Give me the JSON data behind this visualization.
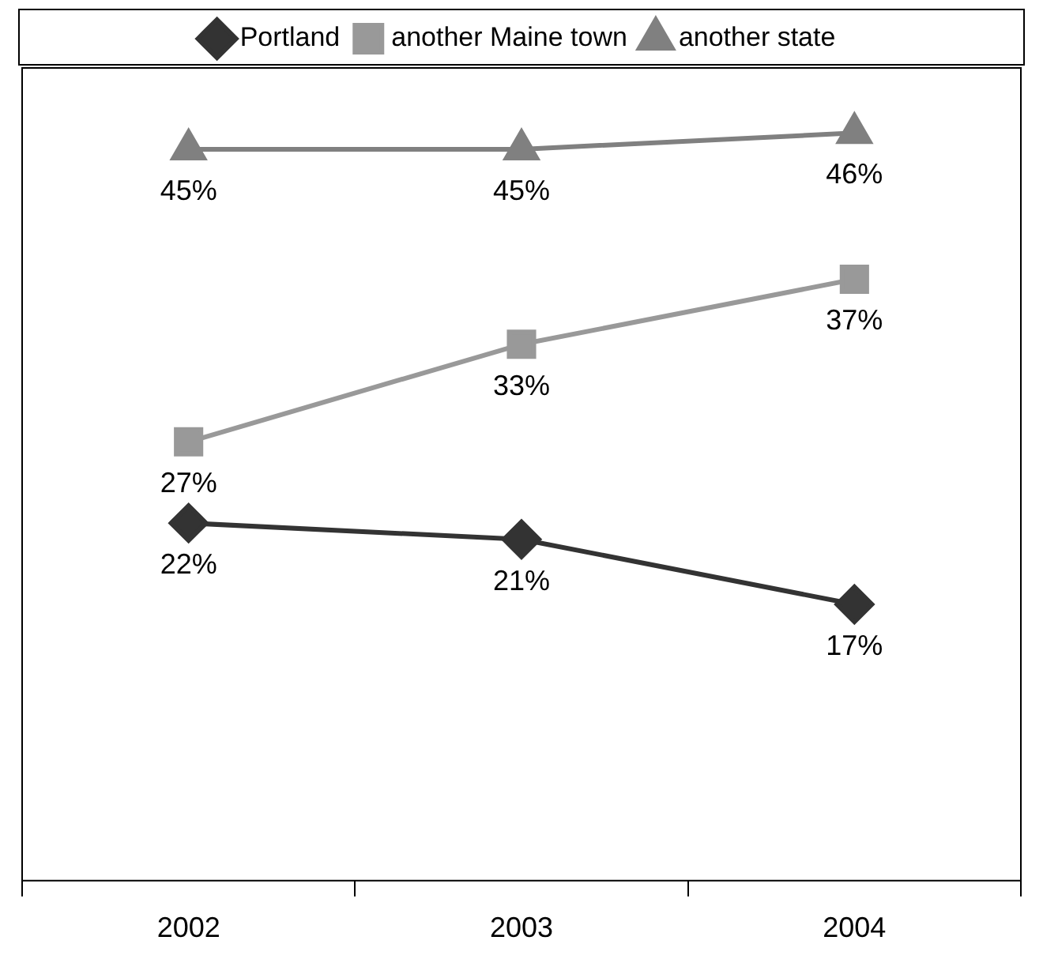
{
  "chart_data": {
    "type": "line",
    "categories": [
      "2002",
      "2003",
      "2004"
    ],
    "ylim": [
      0,
      50
    ],
    "legend": "top",
    "grid": false,
    "series": [
      {
        "name": "Portland",
        "color": "#333333",
        "marker": "diamond",
        "values": [
          22,
          21,
          17
        ],
        "value_labels": [
          "22%",
          "21%",
          "17%"
        ]
      },
      {
        "name": "another Maine town",
        "color": "#999999",
        "marker": "square",
        "values": [
          27,
          33,
          37
        ],
        "value_labels": [
          "27%",
          "33%",
          "37%"
        ]
      },
      {
        "name": "another state",
        "color": "#808080",
        "marker": "triangle",
        "values": [
          45,
          45,
          46
        ],
        "value_labels": [
          "45%",
          "45%",
          "46%"
        ]
      }
    ]
  }
}
